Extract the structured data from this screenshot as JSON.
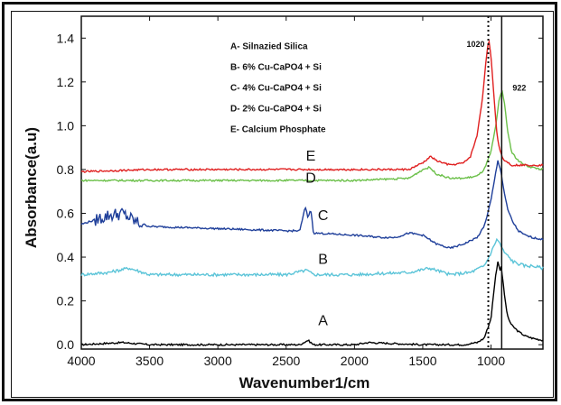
{
  "chart_data": {
    "type": "line",
    "xlabel": "Wavenumber1/cm",
    "ylabel": "Absorbance(a.u)",
    "xlim": [
      4000,
      620
    ],
    "ylim": [
      -0.02,
      1.5
    ],
    "x_ticks": [
      "4000",
      "3500",
      "3000",
      "2500",
      "2000",
      "1500",
      "1000"
    ],
    "y_ticks": [
      "0.0",
      "0.2",
      "0.4",
      "0.6",
      "0.8",
      "1.0",
      "1.2",
      "1.4"
    ],
    "legend": [
      "A- Silnazied Silica",
      "B- 6% Cu-CaPO4 + Si",
      "C- 4% Cu-CaPO4 + Si",
      "D- 2% Cu-CaPO4 + Si",
      "E- Calcium Phosphate"
    ],
    "annotations": [
      {
        "text": "1020",
        "x": 1020
      },
      {
        "text": "922",
        "x": 922
      }
    ],
    "vlines": [
      {
        "x": 1020,
        "style": "dotted"
      },
      {
        "x": 922,
        "style": "solid"
      }
    ],
    "series": [
      {
        "label": "A",
        "color": "#000000",
        "label_at": [
          2230,
          0.09
        ],
        "x": [
          4000,
          3700,
          3500,
          3000,
          2500,
          2400,
          2340,
          2300,
          2000,
          1900,
          1500,
          1200,
          1100,
          1050,
          1000,
          970,
          950,
          935,
          925,
          915,
          900,
          880,
          850,
          800,
          750,
          700,
          620
        ],
        "y": [
          0.0,
          0.01,
          0.0,
          0.0,
          0.0,
          0.0,
          0.02,
          0.0,
          0.0,
          0.01,
          0.0,
          0.0,
          0.01,
          0.03,
          0.12,
          0.3,
          0.38,
          0.34,
          0.36,
          0.3,
          0.22,
          0.13,
          0.09,
          0.06,
          0.04,
          0.03,
          0.02
        ]
      },
      {
        "label": "B",
        "color": "#5bc4d8",
        "label_at": [
          2230,
          0.37
        ],
        "x": [
          4000,
          3800,
          3650,
          3500,
          3000,
          2500,
          2350,
          2300,
          2000,
          1600,
          1450,
          1300,
          1150,
          1050,
          1000,
          960,
          940,
          920,
          900,
          870,
          840,
          800,
          750,
          700,
          620
        ],
        "y": [
          0.32,
          0.33,
          0.35,
          0.32,
          0.32,
          0.32,
          0.34,
          0.32,
          0.32,
          0.33,
          0.35,
          0.32,
          0.33,
          0.36,
          0.42,
          0.48,
          0.47,
          0.44,
          0.42,
          0.4,
          0.38,
          0.37,
          0.36,
          0.36,
          0.35
        ]
      },
      {
        "label": "C",
        "color": "#1f3f9a",
        "label_at": [
          2230,
          0.57
        ],
        "x": [
          4000,
          3900,
          3800,
          3700,
          3600,
          3500,
          3000,
          2500,
          2400,
          2360,
          2340,
          2320,
          2300,
          2000,
          1800,
          1700,
          1600,
          1500,
          1400,
          1300,
          1200,
          1100,
          1050,
          1000,
          970,
          950,
          930,
          910,
          880,
          840,
          800,
          750,
          700,
          620
        ],
        "y": [
          0.55,
          0.57,
          0.59,
          0.6,
          0.56,
          0.54,
          0.53,
          0.52,
          0.52,
          0.63,
          0.58,
          0.62,
          0.51,
          0.5,
          0.49,
          0.49,
          0.51,
          0.5,
          0.46,
          0.44,
          0.46,
          0.49,
          0.54,
          0.66,
          0.77,
          0.84,
          0.8,
          0.72,
          0.62,
          0.56,
          0.52,
          0.5,
          0.49,
          0.48
        ]
      },
      {
        "label": "D",
        "color": "#6cc04a",
        "label_at": [
          2320,
          0.74
        ],
        "x": [
          4000,
          3500,
          3000,
          2500,
          2000,
          1600,
          1500,
          1450,
          1400,
          1300,
          1200,
          1100,
          1050,
          1000,
          960,
          940,
          920,
          900,
          880,
          850,
          800,
          750,
          700,
          620
        ],
        "y": [
          0.75,
          0.75,
          0.75,
          0.75,
          0.75,
          0.76,
          0.8,
          0.81,
          0.78,
          0.76,
          0.76,
          0.77,
          0.8,
          0.88,
          1.02,
          1.12,
          1.16,
          1.1,
          0.98,
          0.88,
          0.84,
          0.82,
          0.81,
          0.8
        ]
      },
      {
        "label": "E",
        "color": "#e02020",
        "label_at": [
          2320,
          0.84
        ],
        "x": [
          4000,
          3500,
          3000,
          2500,
          2000,
          1600,
          1500,
          1440,
          1400,
          1300,
          1200,
          1150,
          1100,
          1060,
          1040,
          1025,
          1015,
          1000,
          980,
          960,
          940,
          920,
          900,
          870,
          850,
          800,
          750,
          700,
          620
        ],
        "y": [
          0.79,
          0.8,
          0.8,
          0.8,
          0.8,
          0.8,
          0.83,
          0.86,
          0.84,
          0.82,
          0.83,
          0.86,
          0.96,
          1.14,
          1.28,
          1.36,
          1.39,
          1.32,
          1.14,
          0.98,
          0.9,
          0.86,
          0.84,
          0.83,
          0.82,
          0.82,
          0.82,
          0.82,
          0.82
        ]
      }
    ]
  }
}
